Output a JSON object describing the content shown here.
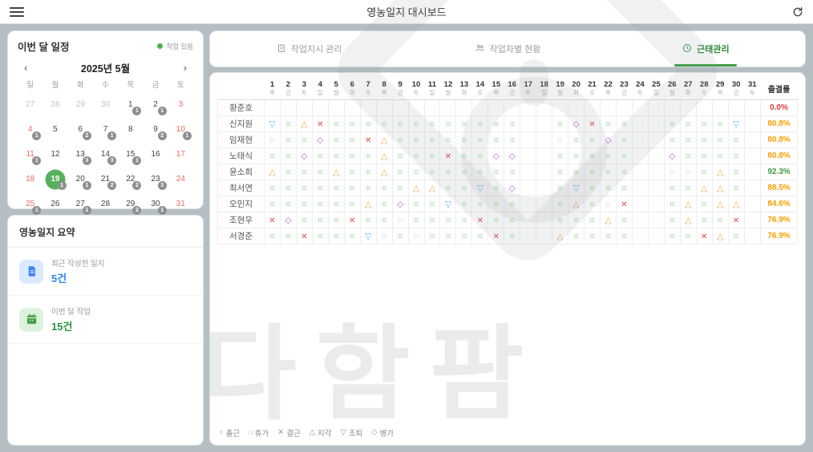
{
  "topbar": {
    "title": "영농일지 대시보드"
  },
  "calendar_card": {
    "title": "이번 달 일정",
    "legend_label": "작업 있음",
    "prev": "‹",
    "next": "›",
    "month_label": "2025년 5월",
    "weekdays": [
      "일",
      "월",
      "화",
      "수",
      "목",
      "금",
      "토"
    ],
    "weeks": [
      [
        {
          "d": 27,
          "t": "muted"
        },
        {
          "d": 28,
          "t": "muted"
        },
        {
          "d": 29,
          "t": "muted"
        },
        {
          "d": 30,
          "t": "muted"
        },
        {
          "d": 1,
          "t": "",
          "b": 1
        },
        {
          "d": 2,
          "t": "",
          "b": 1
        },
        {
          "d": 3,
          "t": "weekend"
        }
      ],
      [
        {
          "d": 4,
          "t": "weekend",
          "b": 1
        },
        {
          "d": 5,
          "t": ""
        },
        {
          "d": 6,
          "t": "",
          "b": 2
        },
        {
          "d": 7,
          "t": "",
          "b": 1
        },
        {
          "d": 8,
          "t": ""
        },
        {
          "d": 9,
          "t": "",
          "b": 2
        },
        {
          "d": 10,
          "t": "weekend",
          "b": 1
        }
      ],
      [
        {
          "d": 11,
          "t": "weekend",
          "b": 1
        },
        {
          "d": 12,
          "t": ""
        },
        {
          "d": 13,
          "t": "",
          "b": 3
        },
        {
          "d": 14,
          "t": "",
          "b": 3
        },
        {
          "d": 15,
          "t": "",
          "b": 1
        },
        {
          "d": 16,
          "t": ""
        },
        {
          "d": 17,
          "t": "weekend"
        }
      ],
      [
        {
          "d": 18,
          "t": "weekend"
        },
        {
          "d": 19,
          "t": "selected",
          "b": 1
        },
        {
          "d": 20,
          "t": "",
          "b": 1
        },
        {
          "d": 21,
          "t": "",
          "b": 2
        },
        {
          "d": 22,
          "t": "",
          "b": 2
        },
        {
          "d": 23,
          "t": "",
          "b": 3
        },
        {
          "d": 24,
          "t": "weekend"
        }
      ],
      [
        {
          "d": 25,
          "t": "weekend",
          "b": 1
        },
        {
          "d": 26,
          "t": ""
        },
        {
          "d": 27,
          "t": "",
          "b": 1
        },
        {
          "d": 28,
          "t": ""
        },
        {
          "d": 29,
          "t": "",
          "b": 2
        },
        {
          "d": 30,
          "t": "",
          "b": 1
        },
        {
          "d": 31,
          "t": "weekend"
        }
      ]
    ]
  },
  "summary_card": {
    "title": "영농일지 요약",
    "items": [
      {
        "icon": "document-icon",
        "label": "최근 작성한 일지",
        "value": "5건",
        "theme": "blue"
      },
      {
        "icon": "calendar-icon",
        "label": "이번 달 작업",
        "value": "15건",
        "theme": "green"
      }
    ]
  },
  "tabs": [
    {
      "id": "work-orders",
      "icon": "clipboard-icon",
      "label": "작업지시 관리",
      "active": false
    },
    {
      "id": "worker-status",
      "icon": "people-icon",
      "label": "작업자별 현황",
      "active": false
    },
    {
      "id": "attendance",
      "icon": "clock-icon",
      "label": "근태관리",
      "active": true
    }
  ],
  "attendance": {
    "rate_header": "출결률",
    "day_numbers": [
      1,
      2,
      3,
      4,
      5,
      6,
      7,
      8,
      9,
      10,
      11,
      12,
      13,
      14,
      15,
      16,
      17,
      18,
      19,
      20,
      21,
      22,
      23,
      24,
      25,
      26,
      27,
      28,
      29,
      30,
      31
    ],
    "day_weekdays": [
      "목",
      "금",
      "토",
      "일",
      "월",
      "화",
      "수",
      "목",
      "금",
      "토",
      "일",
      "월",
      "화",
      "수",
      "목",
      "금",
      "토",
      "일",
      "월",
      "화",
      "수",
      "목",
      "금",
      "토",
      "일",
      "월",
      "화",
      "수",
      "목",
      "금",
      "토"
    ],
    "symbols": {
      "O": {
        "glyph": "○",
        "label": "출근",
        "color": "#5eba66"
      },
      "Q": {
        "glyph": "□",
        "label": "휴가",
        "color": "#b9b9b9"
      },
      "X": {
        "glyph": "✕",
        "label": "결근",
        "color": "#e24a43"
      },
      "A": {
        "glyph": "△",
        "label": "지각",
        "color": "#f5a03c"
      },
      "V": {
        "glyph": "▽",
        "label": "조퇴",
        "color": "#57aef5"
      },
      "D": {
        "glyph": "◇",
        "label": "병가",
        "color": "#a85cc9"
      }
    },
    "legend_order": [
      "O",
      "Q",
      "X",
      "A",
      "V",
      "D"
    ],
    "rows": [
      {
        "name": "황준호",
        "rate": "0.0%",
        "rc": "red",
        "days": [
          "",
          "",
          "",
          "",
          "",
          "",
          "",
          "",
          "",
          "",
          "",
          "",
          "",
          "",
          "",
          "",
          "",
          "",
          "",
          "",
          "",
          "",
          "",
          "",
          "",
          "",
          "",
          "",
          "",
          "",
          ""
        ]
      },
      {
        "name": "신지원",
        "rate": "80.8%",
        "rc": "orange",
        "days": [
          "V",
          "O",
          "A",
          "X",
          "O",
          "O",
          "O",
          "O",
          "O",
          "O",
          "O",
          "O",
          "O",
          "O",
          "O",
          "O",
          "",
          "",
          "O",
          "D",
          "X",
          "O",
          "O",
          "",
          "",
          "O",
          "O",
          "O",
          "O",
          "V",
          ""
        ]
      },
      {
        "name": "임재현",
        "rate": "80.8%",
        "rc": "orange",
        "days": [
          "Q",
          "O",
          "O",
          "D",
          "O",
          "O",
          "X",
          "A",
          "O",
          "O",
          "O",
          "O",
          "O",
          "O",
          "O",
          "O",
          "",
          "",
          "Q",
          "O",
          "O",
          "D",
          "O",
          "",
          "",
          "O",
          "O",
          "O",
          "O",
          "O",
          ""
        ]
      },
      {
        "name": "노태식",
        "rate": "80.8%",
        "rc": "orange",
        "days": [
          "O",
          "O",
          "D",
          "O",
          "O",
          "O",
          "O",
          "A",
          "O",
          "O",
          "O",
          "X",
          "O",
          "O",
          "D",
          "D",
          "",
          "",
          "O",
          "O",
          "O",
          "O",
          "O",
          "",
          "",
          "D",
          "O",
          "O",
          "O",
          "O",
          ""
        ]
      },
      {
        "name": "윤소희",
        "rate": "92.3%",
        "rc": "green",
        "days": [
          "A",
          "O",
          "O",
          "O",
          "A",
          "O",
          "O",
          "A",
          "O",
          "O",
          "O",
          "O",
          "O",
          "O",
          "O",
          "O",
          "",
          "",
          "O",
          "O",
          "O",
          "O",
          "O",
          "",
          "",
          "Q",
          "Q",
          "O",
          "A",
          "O",
          ""
        ]
      },
      {
        "name": "최서연",
        "rate": "88.5%",
        "rc": "orange",
        "days": [
          "O",
          "O",
          "O",
          "O",
          "O",
          "O",
          "O",
          "O",
          "O",
          "A",
          "A",
          "O",
          "O",
          "V",
          "O",
          "D",
          "",
          "",
          "O",
          "V",
          "O",
          "O",
          "O",
          "",
          "",
          "O",
          "O",
          "A",
          "A",
          "O",
          ""
        ]
      },
      {
        "name": "오민지",
        "rate": "84.6%",
        "rc": "orange",
        "days": [
          "O",
          "O",
          "O",
          "O",
          "O",
          "O",
          "A",
          "O",
          "D",
          "O",
          "O",
          "V",
          "O",
          "O",
          "O",
          "O",
          "",
          "",
          "O",
          "A",
          "O",
          "Q",
          "X",
          "",
          "",
          "O",
          "A",
          "O",
          "A",
          "A",
          ""
        ]
      },
      {
        "name": "조현우",
        "rate": "76.9%",
        "rc": "orange",
        "days": [
          "X",
          "D",
          "O",
          "O",
          "O",
          "X",
          "O",
          "O",
          "Q",
          "O",
          "O",
          "O",
          "O",
          "X",
          "O",
          "O",
          "",
          "",
          "O",
          "O",
          "O",
          "A",
          "O",
          "",
          "",
          "O",
          "A",
          "O",
          "O",
          "X",
          ""
        ]
      },
      {
        "name": "서경준",
        "rate": "76.9%",
        "rc": "orange",
        "days": [
          "O",
          "O",
          "X",
          "O",
          "O",
          "O",
          "V",
          "Q",
          "O",
          "Q",
          "O",
          "O",
          "O",
          "O",
          "X",
          "O",
          "",
          "",
          "A",
          "O",
          "O",
          "O",
          "O",
          "",
          "",
          "O",
          "O",
          "X",
          "A",
          "O",
          ""
        ]
      }
    ]
  },
  "watermark_text": "다함팜",
  "colors": {
    "accent_green": "#43a047",
    "page_bg": "#b5bfc3",
    "rate_red": "#e53935",
    "rate_orange": "#f59f00",
    "rate_green": "#3f9c44",
    "selected_day_bg": "#56b15c",
    "badge_bg": "#8f8f8f",
    "weekend_red": "#ef6a5e"
  }
}
